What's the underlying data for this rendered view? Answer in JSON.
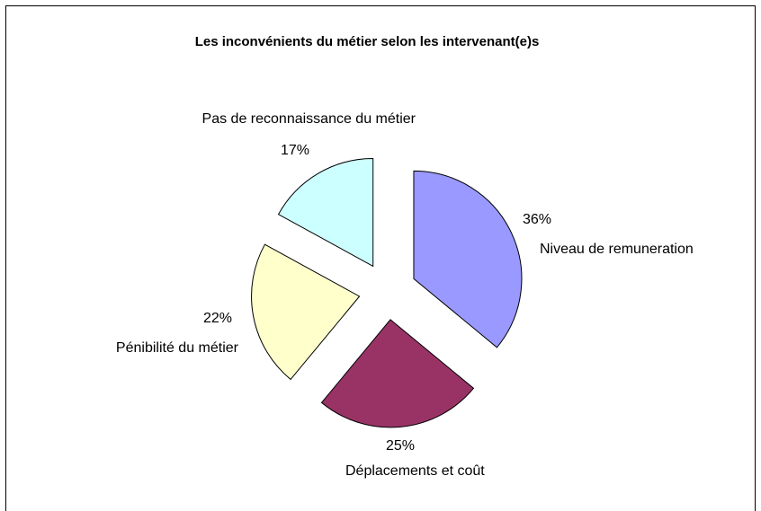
{
  "chart_data": {
    "type": "pie",
    "title": "Les inconvénients du métier selon les intervenant(e)s",
    "categories": [
      "Niveau de remuneration",
      "Déplacements et coût",
      "Pénibilité du métier",
      "Pas de reconnaissance du métier"
    ],
    "values": [
      36,
      25,
      22,
      17
    ],
    "value_labels": [
      "36%",
      "25%",
      "22%",
      "17%"
    ],
    "colors": [
      "#9999ff",
      "#993366",
      "#ffffcc",
      "#ccffff"
    ]
  }
}
